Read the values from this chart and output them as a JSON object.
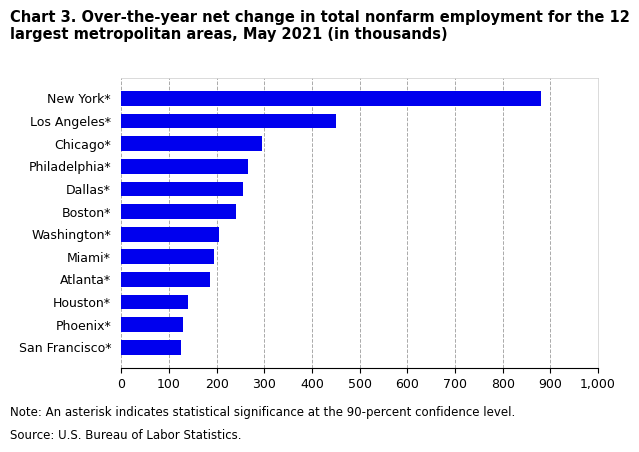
{
  "title_line1": "Chart 3. Over-the-year net change in total nonfarm employment for the 12",
  "title_line2": "largest metropolitan areas, May 2021 (in thousands)",
  "categories": [
    "San Francisco*",
    "Phoenix*",
    "Houston*",
    "Atlanta*",
    "Miami*",
    "Washington*",
    "Boston*",
    "Dallas*",
    "Philadelphia*",
    "Chicago*",
    "Los Angeles*",
    "New York*"
  ],
  "values": [
    125,
    130,
    140,
    185,
    195,
    205,
    240,
    255,
    265,
    295,
    450,
    880
  ],
  "bar_color": "#0000ee",
  "xlim": [
    0,
    1000
  ],
  "xticks": [
    0,
    100,
    200,
    300,
    400,
    500,
    600,
    700,
    800,
    900,
    1000
  ],
  "note_line1": "Note: An asterisk indicates statistical significance at the 90-percent confidence level.",
  "note_line2": "Source: U.S. Bureau of Labor Statistics.",
  "background_color": "#ffffff",
  "grid_color": "#aaaaaa",
  "title_fontsize": 10.5,
  "label_fontsize": 9,
  "tick_fontsize": 9,
  "note_fontsize": 8.5
}
